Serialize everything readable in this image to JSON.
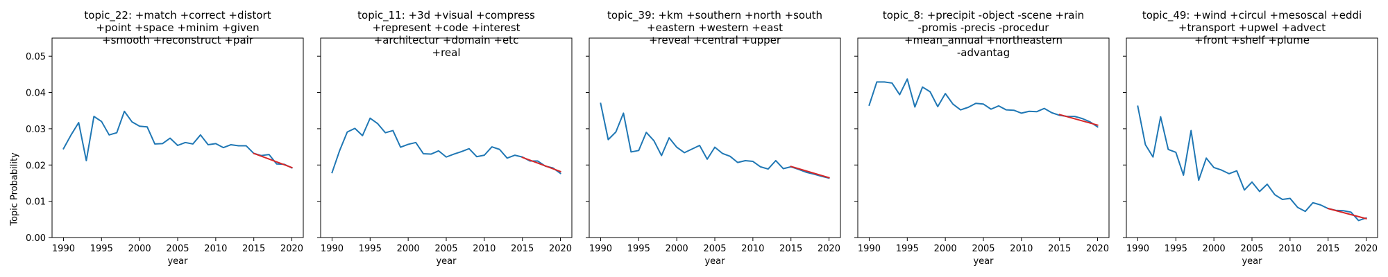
{
  "figure": {
    "ylabel": "Topic Probability"
  },
  "chart_data": [
    {
      "type": "line",
      "title": "topic_22: +match +correct +distort\n+point +space +minim +given\n+smooth +reconstruct +pair",
      "xlabel": "year",
      "ylabel": "Topic Probability",
      "xlim": [
        1988.5,
        2021.5
      ],
      "ylim": [
        0,
        0.055
      ],
      "x_ticks": [
        1990,
        1995,
        2000,
        2005,
        2010,
        2015,
        2020
      ],
      "y_ticks": [
        "0.00",
        "0.01",
        "0.02",
        "0.03",
        "0.04",
        "0.05"
      ],
      "grid": false,
      "series": [
        {
          "color": "#1f77b4",
          "x": [
            1990,
            1991,
            1992,
            1993,
            1994,
            1995,
            1996,
            1997,
            1998,
            1999,
            2000,
            2001,
            2002,
            2003,
            2004,
            2005,
            2006,
            2007,
            2008,
            2009,
            2010,
            2011,
            2012,
            2013,
            2014,
            2015,
            2016,
            2017,
            2018,
            2019,
            2020
          ],
          "y": [
            0.0245,
            0.0283,
            0.0317,
            0.0212,
            0.0334,
            0.032,
            0.0283,
            0.0289,
            0.0348,
            0.0319,
            0.0307,
            0.0305,
            0.0258,
            0.0259,
            0.0274,
            0.0254,
            0.0262,
            0.0258,
            0.0283,
            0.0256,
            0.0259,
            0.0248,
            0.0256,
            0.0253,
            0.0253,
            0.0232,
            0.0226,
            0.0229,
            0.0203,
            0.0202,
            0.0192
          ]
        },
        {
          "color": "#d62728",
          "x": [
            2015,
            2020
          ],
          "y": [
            0.0232,
            0.0193
          ]
        }
      ]
    },
    {
      "type": "line",
      "title": "topic_11: +3d +visual +compress\n+represent +code +interest\n+architectur +domain +etc\n+real",
      "xlabel": "year",
      "xlim": [
        1988.5,
        2021.5
      ],
      "ylim": [
        0,
        0.055
      ],
      "x_ticks": [
        1990,
        1995,
        2000,
        2005,
        2010,
        2015,
        2020
      ],
      "grid": false,
      "series": [
        {
          "color": "#1f77b4",
          "x": [
            1990,
            1991,
            1992,
            1993,
            1994,
            1995,
            1996,
            1997,
            1998,
            1999,
            2000,
            2001,
            2002,
            2003,
            2004,
            2005,
            2006,
            2007,
            2008,
            2009,
            2010,
            2011,
            2012,
            2013,
            2014,
            2015,
            2016,
            2017,
            2018,
            2019,
            2020
          ],
          "y": [
            0.0179,
            0.024,
            0.0291,
            0.0301,
            0.0281,
            0.0329,
            0.0314,
            0.0289,
            0.0295,
            0.0249,
            0.0257,
            0.0262,
            0.0231,
            0.023,
            0.0239,
            0.0222,
            0.023,
            0.0237,
            0.0245,
            0.0223,
            0.0227,
            0.025,
            0.0243,
            0.0219,
            0.0227,
            0.0222,
            0.0211,
            0.0211,
            0.0197,
            0.0192,
            0.0177
          ]
        },
        {
          "color": "#d62728",
          "x": [
            2015,
            2020
          ],
          "y": [
            0.0221,
            0.0182
          ]
        }
      ]
    },
    {
      "type": "line",
      "title": "topic_39: +km +southern +north +south\n+eastern +western +east\n+reveal +central +upper",
      "xlabel": "year",
      "xlim": [
        1988.5,
        2021.5
      ],
      "ylim": [
        0,
        0.055
      ],
      "x_ticks": [
        1990,
        1995,
        2000,
        2005,
        2010,
        2015,
        2020
      ],
      "grid": false,
      "series": [
        {
          "color": "#1f77b4",
          "x": [
            1990,
            1991,
            1992,
            1993,
            1994,
            1995,
            1996,
            1997,
            1998,
            1999,
            2000,
            2001,
            2002,
            2003,
            2004,
            2005,
            2006,
            2007,
            2008,
            2009,
            2010,
            2011,
            2012,
            2013,
            2014,
            2015,
            2016,
            2017,
            2018,
            2019,
            2020
          ],
          "y": [
            0.037,
            0.027,
            0.0291,
            0.0343,
            0.0236,
            0.024,
            0.029,
            0.0267,
            0.0226,
            0.0275,
            0.0249,
            0.0234,
            0.0244,
            0.0254,
            0.0216,
            0.0249,
            0.0232,
            0.0224,
            0.0207,
            0.0212,
            0.021,
            0.0195,
            0.0189,
            0.0212,
            0.019,
            0.0195,
            0.0188,
            0.018,
            0.0175,
            0.0169,
            0.0164
          ]
        },
        {
          "color": "#d62728",
          "x": [
            2015,
            2020
          ],
          "y": [
            0.0196,
            0.0165
          ]
        }
      ]
    },
    {
      "type": "line",
      "title": "topic_8: +precipit -object -scene +rain\n-promis -precis -procedur\n+mean_annual +northeastern\n-advantag",
      "xlabel": "year",
      "xlim": [
        1988.5,
        2021.5
      ],
      "ylim": [
        0,
        0.055
      ],
      "x_ticks": [
        1990,
        1995,
        2000,
        2005,
        2010,
        2015,
        2020
      ],
      "grid": false,
      "series": [
        {
          "color": "#1f77b4",
          "x": [
            1990,
            1991,
            1992,
            1993,
            1994,
            1995,
            1996,
            1997,
            1998,
            1999,
            2000,
            2001,
            2002,
            2003,
            2004,
            2005,
            2006,
            2007,
            2008,
            2009,
            2010,
            2011,
            2012,
            2013,
            2014,
            2015,
            2016,
            2017,
            2018,
            2019,
            2020
          ],
          "y": [
            0.0365,
            0.0429,
            0.0429,
            0.0426,
            0.0394,
            0.0437,
            0.036,
            0.0415,
            0.0402,
            0.0361,
            0.0397,
            0.0368,
            0.0352,
            0.0359,
            0.037,
            0.0368,
            0.0354,
            0.0363,
            0.0352,
            0.0351,
            0.0343,
            0.0348,
            0.0347,
            0.0356,
            0.0344,
            0.0337,
            0.0334,
            0.0334,
            0.0328,
            0.0319,
            0.0305
          ]
        },
        {
          "color": "#d62728",
          "x": [
            2015,
            2020
          ],
          "y": [
            0.0339,
            0.031
          ]
        }
      ]
    },
    {
      "type": "line",
      "title": "topic_49: +wind +circul +mesoscal +eddi\n+transport +upwel +advect\n+front +shelf +plume",
      "xlabel": "year",
      "xlim": [
        1988.5,
        2021.5
      ],
      "ylim": [
        0,
        0.055
      ],
      "x_ticks": [
        1990,
        1995,
        2000,
        2005,
        2010,
        2015,
        2020
      ],
      "grid": false,
      "series": [
        {
          "color": "#1f77b4",
          "x": [
            1990,
            1991,
            1992,
            1993,
            1994,
            1995,
            1996,
            1997,
            1998,
            1999,
            2000,
            2001,
            2002,
            2003,
            2004,
            2005,
            2006,
            2007,
            2008,
            2009,
            2010,
            2011,
            2012,
            2013,
            2014,
            2015,
            2016,
            2017,
            2018,
            2019,
            2020
          ],
          "y": [
            0.0362,
            0.0256,
            0.0222,
            0.0333,
            0.0243,
            0.0235,
            0.0172,
            0.0295,
            0.0158,
            0.0219,
            0.0193,
            0.0186,
            0.0176,
            0.0184,
            0.0131,
            0.0153,
            0.0127,
            0.0147,
            0.0118,
            0.0105,
            0.0108,
            0.0083,
            0.0072,
            0.0096,
            0.009,
            0.008,
            0.0075,
            0.0074,
            0.007,
            0.0047,
            0.0054
          ]
        },
        {
          "color": "#d62728",
          "x": [
            2015,
            2020
          ],
          "y": [
            0.008,
            0.0052
          ]
        }
      ]
    }
  ]
}
